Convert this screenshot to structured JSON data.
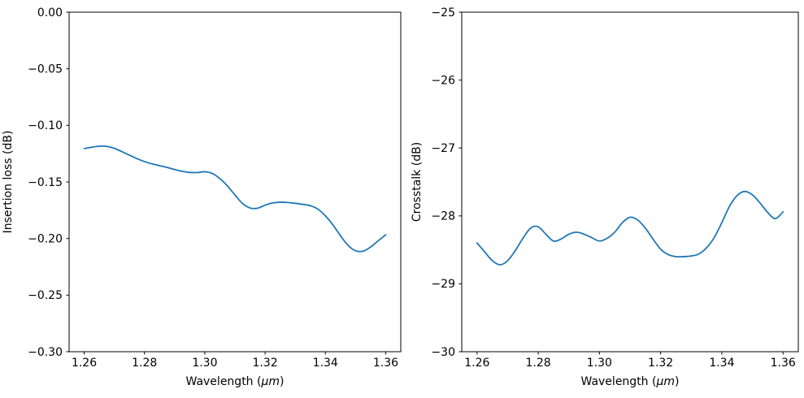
{
  "figure": {
    "background": "#ffffff",
    "accent_line_color": "#1f77b4",
    "axis_color": "#000000"
  },
  "chart_data": [
    {
      "id": "insertion-loss",
      "type": "line",
      "title": "",
      "xlabel": {
        "pre": "Wavelength (",
        "unit_italic": "μm",
        "post": ")"
      },
      "ylabel": "Insertion loss (dB)",
      "xlim": [
        1.255,
        1.365
      ],
      "ylim": [
        -0.3,
        0.0
      ],
      "xticks": [
        1.26,
        1.28,
        1.3,
        1.32,
        1.34,
        1.36
      ],
      "xtick_labels": [
        "1.26",
        "1.28",
        "1.30",
        "1.32",
        "1.34",
        "1.36"
      ],
      "yticks": [
        0.0,
        -0.05,
        -0.1,
        -0.15,
        -0.2,
        -0.25,
        -0.3
      ],
      "ytick_labels": [
        "0.00",
        "−0.05",
        "−0.10",
        "−0.15",
        "−0.20",
        "−0.25",
        "−0.30"
      ],
      "grid": false,
      "legend": null,
      "series": [
        {
          "name": "insertion loss",
          "color": "#1f77b4",
          "x": [
            1.26,
            1.2625,
            1.265,
            1.2675,
            1.27,
            1.2725,
            1.275,
            1.2775,
            1.28,
            1.2825,
            1.285,
            1.2875,
            1.29,
            1.2925,
            1.295,
            1.2975,
            1.3,
            1.3025,
            1.305,
            1.3075,
            1.31,
            1.3125,
            1.315,
            1.3175,
            1.32,
            1.3225,
            1.325,
            1.3275,
            1.33,
            1.3325,
            1.335,
            1.3375,
            1.34,
            1.3425,
            1.345,
            1.3475,
            1.35,
            1.3525,
            1.355,
            1.3575,
            1.36
          ],
          "y": [
            -0.1205,
            -0.1193,
            -0.1184,
            -0.1186,
            -0.1203,
            -0.1232,
            -0.1263,
            -0.1294,
            -0.132,
            -0.134,
            -0.1356,
            -0.1372,
            -0.139,
            -0.1406,
            -0.1416,
            -0.1417,
            -0.141,
            -0.1425,
            -0.147,
            -0.1535,
            -0.1615,
            -0.169,
            -0.173,
            -0.1732,
            -0.1705,
            -0.1686,
            -0.1679,
            -0.1682,
            -0.1689,
            -0.1698,
            -0.171,
            -0.174,
            -0.18,
            -0.188,
            -0.1975,
            -0.206,
            -0.2108,
            -0.2112,
            -0.2075,
            -0.202,
            -0.1967
          ]
        }
      ]
    },
    {
      "id": "crosstalk",
      "type": "line",
      "title": "",
      "xlabel": {
        "pre": "Wavelength (",
        "unit_italic": "μm",
        "post": ")"
      },
      "ylabel": "Crosstalk (dB)",
      "xlim": [
        1.255,
        1.365
      ],
      "ylim": [
        -30,
        -25
      ],
      "xticks": [
        1.26,
        1.28,
        1.3,
        1.32,
        1.34,
        1.36
      ],
      "xtick_labels": [
        "1.26",
        "1.28",
        "1.30",
        "1.32",
        "1.34",
        "1.36"
      ],
      "yticks": [
        -25,
        -26,
        -27,
        -28,
        -29,
        -30
      ],
      "ytick_labels": [
        "−25",
        "−26",
        "−27",
        "−28",
        "−29",
        "−30"
      ],
      "grid": false,
      "legend": null,
      "series": [
        {
          "name": "crosstalk",
          "color": "#1f77b4",
          "x": [
            1.26,
            1.2625,
            1.265,
            1.2675,
            1.27,
            1.2725,
            1.275,
            1.2775,
            1.28,
            1.2825,
            1.285,
            1.2875,
            1.29,
            1.2925,
            1.295,
            1.2975,
            1.3,
            1.3025,
            1.305,
            1.3075,
            1.31,
            1.3125,
            1.315,
            1.3175,
            1.32,
            1.3225,
            1.325,
            1.3275,
            1.33,
            1.3325,
            1.335,
            1.3375,
            1.34,
            1.3425,
            1.345,
            1.3475,
            1.35,
            1.3525,
            1.355,
            1.3575,
            1.36
          ],
          "y": [
            -28.4,
            -28.53,
            -28.66,
            -28.72,
            -28.66,
            -28.51,
            -28.33,
            -28.18,
            -28.16,
            -28.27,
            -28.37,
            -28.34,
            -28.27,
            -28.24,
            -28.27,
            -28.32,
            -28.37,
            -28.33,
            -28.24,
            -28.1,
            -28.02,
            -28.06,
            -28.18,
            -28.34,
            -28.49,
            -28.57,
            -28.6,
            -28.6,
            -28.59,
            -28.56,
            -28.47,
            -28.32,
            -28.1,
            -27.86,
            -27.7,
            -27.64,
            -27.69,
            -27.81,
            -27.95,
            -28.04,
            -27.94
          ]
        }
      ]
    }
  ]
}
